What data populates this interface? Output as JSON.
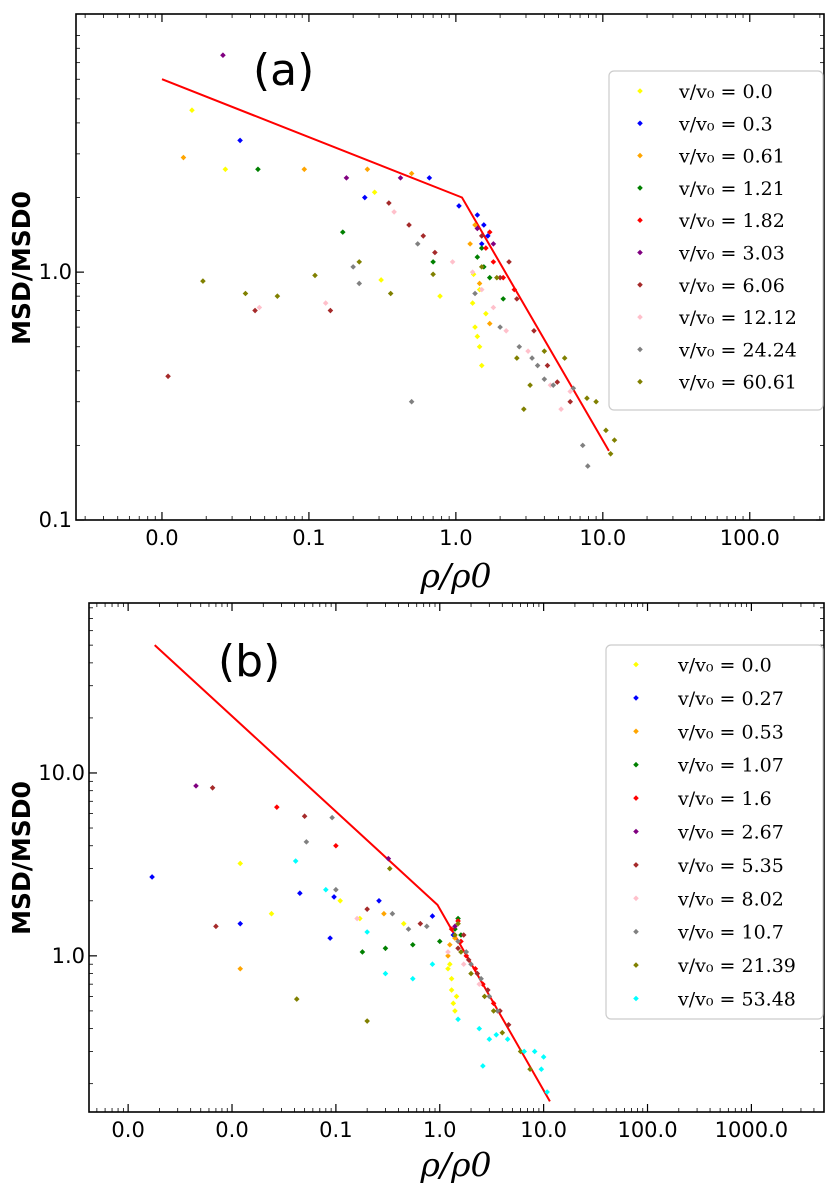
{
  "chart_data": [
    {
      "type": "scatter",
      "panel_label": "(a)",
      "xlabel": "ρ/ρ0",
      "ylabel": "MSD/MSD0",
      "xscale": "log",
      "yscale": "log",
      "xlim": [
        0.0026,
        320
      ],
      "ylim": [
        0.1,
        11
      ],
      "x_ticks": [
        0.01,
        0.1,
        1,
        10,
        100
      ],
      "x_tick_labels": [
        "0.0",
        "0.1",
        "1.0",
        "10.0",
        "100.0"
      ],
      "y_ticks": [
        0.1,
        1
      ],
      "y_tick_labels": [
        "0.1",
        "1.0"
      ],
      "legend_position": "right",
      "fit_line": [
        [
          0.01,
          6.0
        ],
        [
          1.1,
          2.0
        ],
        [
          11,
          0.19
        ]
      ],
      "series": [
        {
          "name": "v/v0 = 0.0",
          "label": "v/v₀ = 0.0",
          "color": "#ffff00",
          "points": [
            [
              0.016,
              4.5
            ],
            [
              0.027,
              2.6
            ],
            [
              0.28,
              2.1
            ],
            [
              0.31,
              0.93
            ],
            [
              0.78,
              0.8
            ],
            [
              1.3,
              0.75
            ],
            [
              1.35,
              0.6
            ],
            [
              1.4,
              0.55
            ],
            [
              1.45,
              0.5
            ],
            [
              1.5,
              0.42
            ],
            [
              1.32,
              0.98
            ],
            [
              1.45,
              0.85
            ],
            [
              1.6,
              0.68
            ]
          ]
        },
        {
          "name": "v/v0 = 0.3",
          "label": "v/v₀ = 0.3",
          "color": "#0000ff",
          "points": [
            [
              0.034,
              3.4
            ],
            [
              0.24,
              2.0
            ],
            [
              0.66,
              2.4
            ],
            [
              1.05,
              1.85
            ],
            [
              1.4,
              1.7
            ],
            [
              1.55,
              1.55
            ],
            [
              1.65,
              1.4
            ],
            [
              1.5,
              1.3
            ]
          ]
        },
        {
          "name": "v/v0 = 0.61",
          "label": "v/v₀ = 0.61",
          "color": "#ffa500",
          "points": [
            [
              0.014,
              2.9
            ],
            [
              0.093,
              2.6
            ],
            [
              0.25,
              2.6
            ],
            [
              0.5,
              2.5
            ],
            [
              1.25,
              1.3
            ],
            [
              1.35,
              1.55
            ],
            [
              1.7,
              0.62
            ],
            [
              1.45,
              0.9
            ]
          ]
        },
        {
          "name": "v/v0 = 1.21",
          "label": "v/v₀ = 1.21",
          "color": "#008000",
          "points": [
            [
              0.045,
              2.6
            ],
            [
              0.17,
              1.45
            ],
            [
              0.7,
              1.1
            ],
            [
              1.4,
              1.15
            ],
            [
              1.55,
              1.05
            ],
            [
              1.7,
              0.95
            ],
            [
              2.1,
              0.78
            ],
            [
              1.5,
              1.25
            ]
          ]
        },
        {
          "name": "v/v0 = 1.82",
          "label": "v/v₀ = 1.82",
          "color": "#ff0000",
          "points": [
            [
              1.6,
              1.25
            ],
            [
              1.8,
              1.1
            ],
            [
              2.1,
              0.95
            ],
            [
              2.5,
              0.85
            ],
            [
              1.7,
              1.45
            ]
          ]
        },
        {
          "name": "v/v0 = 3.03",
          "label": "v/v₀ = 3.03",
          "color": "#800080",
          "points": [
            [
              0.026,
              7.5
            ],
            [
              0.18,
              2.4
            ],
            [
              0.42,
              2.4
            ],
            [
              1.4,
              1.5
            ],
            [
              1.8,
              1.3
            ]
          ]
        },
        {
          "name": "v/v0 = 6.06",
          "label": "v/v₀ = 6.06",
          "color": "#a52a2a",
          "points": [
            [
              0.011,
              0.38
            ],
            [
              0.043,
              0.7
            ],
            [
              0.14,
              0.7
            ],
            [
              0.35,
              1.9
            ],
            [
              0.48,
              1.55
            ],
            [
              0.72,
              1.2
            ],
            [
              0.6,
              1.4
            ],
            [
              1.5,
              1.4
            ],
            [
              2.0,
              0.95
            ],
            [
              2.6,
              0.78
            ],
            [
              3.4,
              0.58
            ],
            [
              4.2,
              0.42
            ],
            [
              4.9,
              0.36
            ],
            [
              6.0,
              0.3
            ],
            [
              2.3,
              1.1
            ]
          ]
        },
        {
          "name": "v/v0 = 12.12",
          "label": "v/v₀ = 12.12",
          "color": "#ffc0cb",
          "points": [
            [
              0.046,
              0.72
            ],
            [
              0.13,
              0.75
            ],
            [
              0.38,
              1.75
            ],
            [
              0.95,
              1.1
            ],
            [
              1.5,
              0.85
            ],
            [
              1.8,
              0.72
            ],
            [
              2.2,
              0.58
            ],
            [
              3.1,
              0.48
            ],
            [
              4.4,
              0.35
            ],
            [
              5.2,
              0.28
            ],
            [
              6.0,
              0.33
            ],
            [
              1.3,
              1.0
            ]
          ]
        },
        {
          "name": "v/v0 = 24.24",
          "label": "v/v₀ = 24.24",
          "color": "#808080",
          "points": [
            [
              0.2,
              1.05
            ],
            [
              0.22,
              0.9
            ],
            [
              0.5,
              0.3
            ],
            [
              0.55,
              1.3
            ],
            [
              1.35,
              0.82
            ],
            [
              2.0,
              0.6
            ],
            [
              2.7,
              0.5
            ],
            [
              3.3,
              0.45
            ],
            [
              3.6,
              0.42
            ],
            [
              4.6,
              0.35
            ],
            [
              6.3,
              0.34
            ],
            [
              7.3,
              0.2
            ],
            [
              7.9,
              0.165
            ],
            [
              4.0,
              0.37
            ]
          ]
        },
        {
          "name": "v/v0 = 60.61",
          "label": "v/v₀ = 60.61",
          "color": "#808000",
          "points": [
            [
              0.019,
              0.92
            ],
            [
              0.037,
              0.82
            ],
            [
              0.061,
              0.8
            ],
            [
              0.11,
              0.97
            ],
            [
              0.22,
              1.1
            ],
            [
              0.36,
              0.82
            ],
            [
              0.7,
              0.98
            ],
            [
              1.5,
              1.05
            ],
            [
              1.9,
              0.95
            ],
            [
              2.6,
              0.45
            ],
            [
              3.2,
              0.35
            ],
            [
              4.0,
              0.48
            ],
            [
              5.5,
              0.45
            ],
            [
              7.8,
              0.31
            ],
            [
              9.0,
              0.3
            ],
            [
              10.5,
              0.23
            ],
            [
              12.0,
              0.21
            ],
            [
              11.3,
              0.185
            ],
            [
              2.9,
              0.28
            ]
          ]
        }
      ]
    },
    {
      "type": "scatter",
      "panel_label": "(b)",
      "xlabel": "ρ/ρ0",
      "ylabel": "MSD/MSD0",
      "xscale": "log",
      "yscale": "log",
      "xlim": [
        0.00042,
        5000
      ],
      "ylim": [
        0.14,
        85
      ],
      "x_ticks": [
        0.001,
        0.01,
        0.1,
        1,
        10,
        100,
        1000
      ],
      "x_tick_labels": [
        "0.0",
        "0.0",
        "0.1",
        "1.0",
        "10.0",
        "100.0",
        "1000.0"
      ],
      "y_ticks": [
        1,
        10
      ],
      "y_tick_labels": [
        "1.0",
        "10.0"
      ],
      "legend_position": "right",
      "fit_line": [
        [
          0.0018,
          50
        ],
        [
          0.95,
          1.9
        ],
        [
          11.5,
          0.16
        ]
      ],
      "series": [
        {
          "name": "v/v0 = 0.0",
          "label": "v/v₀ = 0.0",
          "color": "#ffff00",
          "points": [
            [
              0.012,
              3.2
            ],
            [
              0.024,
              1.7
            ],
            [
              0.11,
              2.0
            ],
            [
              0.17,
              1.6
            ],
            [
              0.45,
              1.5
            ],
            [
              1.25,
              0.9
            ],
            [
              1.3,
              0.65
            ],
            [
              1.35,
              0.55
            ],
            [
              1.4,
              0.5
            ],
            [
              1.3,
              0.75
            ],
            [
              1.45,
              0.6
            ],
            [
              1.2,
              0.85
            ]
          ]
        },
        {
          "name": "v/v0 = 0.27",
          "label": "v/v₀ = 0.27",
          "color": "#0000ff",
          "points": [
            [
              0.0017,
              2.7
            ],
            [
              0.012,
              1.5
            ],
            [
              0.045,
              2.2
            ],
            [
              0.088,
              1.25
            ],
            [
              0.096,
              2.1
            ],
            [
              0.26,
              2.0
            ],
            [
              0.85,
              1.65
            ],
            [
              1.35,
              1.3
            ]
          ]
        },
        {
          "name": "v/v0 = 0.53",
          "label": "v/v₀ = 0.53",
          "color": "#ffa500",
          "points": [
            [
              0.012,
              0.85
            ],
            [
              0.29,
              1.7
            ],
            [
              1.25,
              1.15
            ],
            [
              1.4,
              1.25
            ],
            [
              1.2,
              1.0
            ]
          ]
        },
        {
          "name": "v/v0 = 1.07",
          "label": "v/v₀ = 1.07",
          "color": "#008000",
          "points": [
            [
              0.18,
              1.05
            ],
            [
              0.3,
              1.1
            ],
            [
              0.55,
              1.15
            ],
            [
              1.0,
              1.2
            ],
            [
              1.4,
              1.4
            ],
            [
              1.5,
              1.6
            ],
            [
              1.6,
              1.3
            ]
          ]
        },
        {
          "name": "v/v0 = 1.6",
          "label": "v/v₀ = 1.6",
          "color": "#ff0000",
          "points": [
            [
              0.027,
              6.5
            ],
            [
              0.1,
              4.0
            ],
            [
              1.3,
              1.4
            ],
            [
              1.6,
              1.2
            ],
            [
              1.8,
              1.0
            ],
            [
              2.2,
              0.85
            ],
            [
              2.6,
              0.7
            ],
            [
              3.3,
              0.55
            ],
            [
              1.5,
              1.55
            ]
          ]
        },
        {
          "name": "v/v0 = 2.67",
          "label": "v/v₀ = 2.67",
          "color": "#800080",
          "points": [
            [
              0.0045,
              8.5
            ],
            [
              0.32,
              3.4
            ],
            [
              1.4,
              1.45
            ]
          ]
        },
        {
          "name": "v/v0 = 5.35",
          "label": "v/v₀ = 5.35",
          "color": "#a52a2a",
          "points": [
            [
              0.007,
              1.45
            ],
            [
              0.0065,
              8.3
            ],
            [
              0.05,
              5.8
            ],
            [
              0.2,
              1.8
            ],
            [
              0.65,
              1.5
            ],
            [
              1.5,
              1.1
            ],
            [
              1.9,
              0.95
            ],
            [
              2.3,
              0.8
            ],
            [
              2.9,
              0.65
            ],
            [
              3.8,
              0.5
            ],
            [
              4.6,
              0.42
            ],
            [
              1.7,
              1.3
            ]
          ]
        },
        {
          "name": "v/v0 = 8.02",
          "label": "v/v₀ = 8.02",
          "color": "#ffc0cb",
          "points": [
            [
              0.16,
              1.6
            ],
            [
              1.2,
              1.05
            ],
            [
              1.7,
              0.9
            ],
            [
              2.4,
              0.7
            ]
          ]
        },
        {
          "name": "v/v0 = 10.7",
          "label": "v/v₀ = 10.7",
          "color": "#808080",
          "points": [
            [
              0.052,
              4.2
            ],
            [
              0.092,
              5.7
            ],
            [
              0.1,
              2.3
            ],
            [
              0.35,
              1.7
            ],
            [
              0.5,
              1.4
            ],
            [
              0.75,
              1.45
            ],
            [
              1.5,
              1.2
            ],
            [
              2.0,
              0.9
            ],
            [
              2.5,
              0.75
            ],
            [
              3.0,
              0.6
            ],
            [
              3.6,
              0.5
            ],
            [
              1.8,
              1.05
            ]
          ]
        },
        {
          "name": "v/v0 = 21.39",
          "label": "v/v₀ = 21.39",
          "color": "#808000",
          "points": [
            [
              0.042,
              0.58
            ],
            [
              0.2,
              0.44
            ],
            [
              0.33,
              3.0
            ],
            [
              1.4,
              1.3
            ],
            [
              1.6,
              1.05
            ],
            [
              2.0,
              0.8
            ],
            [
              2.7,
              0.6
            ],
            [
              4.0,
              0.38
            ],
            [
              6.0,
              0.3
            ],
            [
              7.4,
              0.24
            ],
            [
              1.5,
              1.5
            ],
            [
              3.3,
              0.5
            ]
          ]
        },
        {
          "name": "v/v0 = 53.48",
          "label": "v/v₀ = 53.48",
          "color": "#00ffff",
          "points": [
            [
              0.041,
              3.3
            ],
            [
              0.08,
              2.3
            ],
            [
              0.2,
              1.35
            ],
            [
              0.3,
              0.8
            ],
            [
              0.55,
              0.75
            ],
            [
              0.85,
              0.9
            ],
            [
              1.5,
              0.45
            ],
            [
              2.4,
              0.4
            ],
            [
              3.0,
              0.35
            ],
            [
              3.5,
              0.37
            ],
            [
              4.5,
              0.35
            ],
            [
              6.5,
              0.3
            ],
            [
              8.2,
              0.3
            ],
            [
              10.0,
              0.28
            ],
            [
              10.8,
              0.18
            ],
            [
              9.5,
              0.24
            ],
            [
              2.6,
              0.25
            ]
          ]
        }
      ]
    }
  ]
}
